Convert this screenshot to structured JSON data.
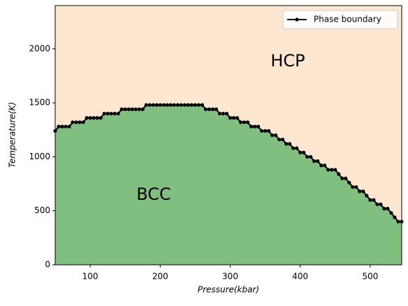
{
  "chart_data": {
    "type": "area",
    "xlabel": "Pressure(kbar)",
    "ylabel": "Temperature(K)",
    "annotations": [
      "BCC",
      "HCP"
    ],
    "below_color": "#80bf80",
    "above_color": "#fee7d0",
    "legend": "upper right",
    "series": [
      {
        "name": "Phase boundary",
        "color": "#000000",
        "x": [
          50,
          55,
          60,
          65,
          70,
          75,
          80,
          85,
          90,
          95,
          100,
          105,
          110,
          115,
          120,
          125,
          130,
          135,
          140,
          145,
          150,
          155,
          160,
          165,
          170,
          175,
          180,
          185,
          190,
          195,
          200,
          205,
          210,
          215,
          220,
          225,
          230,
          235,
          240,
          245,
          250,
          255,
          260,
          265,
          270,
          275,
          280,
          285,
          290,
          295,
          300,
          305,
          310,
          315,
          320,
          325,
          330,
          335,
          340,
          345,
          350,
          355,
          360,
          365,
          370,
          375,
          380,
          385,
          390,
          395,
          400,
          405,
          410,
          415,
          420,
          425,
          430,
          435,
          440,
          445,
          450,
          455,
          460,
          465,
          470,
          475,
          480,
          485,
          490,
          495,
          500,
          505,
          510,
          515,
          520,
          525,
          530,
          535,
          540,
          545
        ],
        "values": [
          1240,
          1280,
          1280,
          1280,
          1280,
          1320,
          1320,
          1320,
          1320,
          1360,
          1360,
          1360,
          1360,
          1360,
          1400,
          1400,
          1400,
          1400,
          1400,
          1440,
          1440,
          1440,
          1440,
          1440,
          1440,
          1440,
          1480,
          1480,
          1480,
          1480,
          1480,
          1480,
          1480,
          1480,
          1480,
          1480,
          1480,
          1480,
          1480,
          1480,
          1480,
          1480,
          1480,
          1440,
          1440,
          1440,
          1440,
          1400,
          1400,
          1400,
          1360,
          1360,
          1360,
          1320,
          1320,
          1320,
          1280,
          1280,
          1280,
          1240,
          1240,
          1240,
          1200,
          1200,
          1160,
          1160,
          1120,
          1120,
          1080,
          1080,
          1040,
          1040,
          1000,
          1000,
          960,
          960,
          920,
          920,
          880,
          880,
          880,
          840,
          800,
          800,
          760,
          720,
          720,
          680,
          680,
          640,
          600,
          600,
          560,
          560,
          520,
          520,
          480,
          440,
          400,
          400
        ]
      }
    ],
    "xlim": [
      50,
      545
    ],
    "ylim": [
      0,
      2400
    ],
    "xticks": [
      100,
      200,
      300,
      400,
      500
    ],
    "yticks": [
      0,
      500,
      1000,
      1500,
      2000
    ]
  }
}
